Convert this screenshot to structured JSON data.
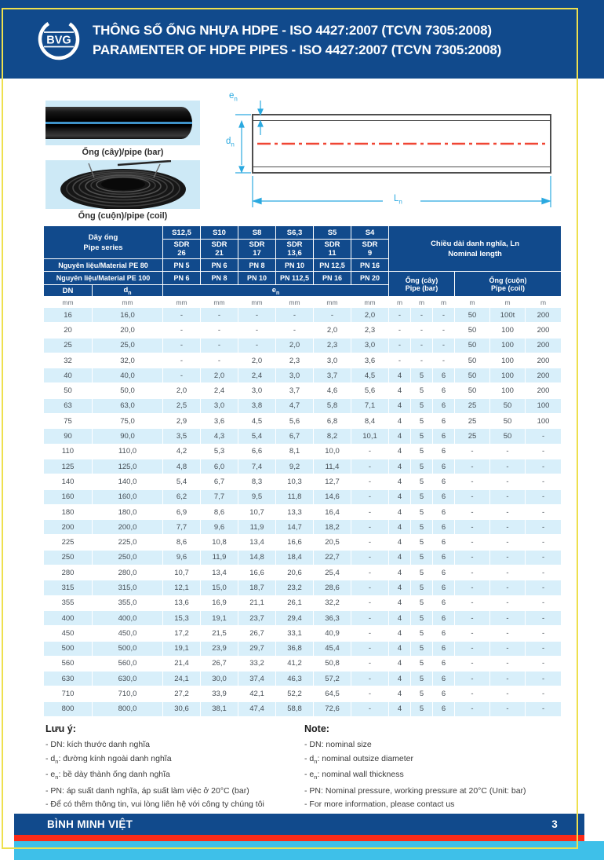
{
  "header": {
    "logo_text": "BVG",
    "title_line1": "THÔNG SỐ ỐNG NHỰA HDPE - ISO 4427:2007 (TCVN 7305:2008)",
    "title_line2": "PARAMENTER OF HDPE PIPES - ISO 4427:2007 (TCVN 7305:2008)"
  },
  "media": {
    "bar_photo_label": "Ống (cây)/pipe (bar)",
    "coil_photo_label": "Ống (cuộn)/pipe (coil)"
  },
  "diagram": {
    "en": {
      "pre": "e",
      "sub": "n"
    },
    "dn": {
      "pre": "d",
      "sub": "n"
    },
    "ln": {
      "pre": "L",
      "sub": "n"
    }
  },
  "table": {
    "series": {
      "vi": "Dãy ống",
      "en": "Pipe series"
    },
    "s_labels": [
      "S12,5",
      "S10",
      "S8",
      "S6,3",
      "S5",
      "S4"
    ],
    "sdr_label": "SDR",
    "sdr_values": [
      "26",
      "21",
      "17",
      "13,6",
      "11",
      "9"
    ],
    "pe80_label": "Nguyên liệu/Material PE 80",
    "pe80_pn": [
      "PN 5",
      "PN 6",
      "PN 8",
      "PN 10",
      "PN 12,5",
      "PN 16"
    ],
    "pe100_label": "Nguyên liệu/Material PE 100",
    "pe100_pn": [
      "PN 6",
      "PN 8",
      "PN 10",
      "PN 112,5",
      "PN 16",
      "PN 20"
    ],
    "length": {
      "line1": "Chiều dài danh nghĩa, Ln",
      "line2": "Nominal length"
    },
    "bar": {
      "line1": "Ống (cây)",
      "line2": "Pipe (bar)"
    },
    "coil": {
      "line1": "Ống (cuộn)",
      "line2": "Pipe (coil)"
    },
    "col_dn": "DN",
    "col_d": {
      "pre": "d",
      "sub": "n"
    },
    "col_e": {
      "pre": "e",
      "sub": "n"
    },
    "units": [
      "mm",
      "mm",
      "mm",
      "mm",
      "mm",
      "mm",
      "mm",
      "mm",
      "m",
      "m",
      "m",
      "m",
      "m",
      "m"
    ],
    "rows": [
      [
        "16",
        "16,0",
        "-",
        "-",
        "-",
        "-",
        "-",
        "2,0",
        "-",
        "-",
        "-",
        "50",
        "100t",
        "200"
      ],
      [
        "20",
        "20,0",
        "-",
        "-",
        "-",
        "-",
        "2,0",
        "2,3",
        "-",
        "-",
        "-",
        "50",
        "100",
        "200"
      ],
      [
        "25",
        "25,0",
        "-",
        "-",
        "-",
        "2,0",
        "2,3",
        "3,0",
        "-",
        "-",
        "-",
        "50",
        "100",
        "200"
      ],
      [
        "32",
        "32,0",
        "-",
        "-",
        "2,0",
        "2,3",
        "3,0",
        "3,6",
        "-",
        "-",
        "-",
        "50",
        "100",
        "200"
      ],
      [
        "40",
        "40,0",
        "-",
        "2,0",
        "2,4",
        "3,0",
        "3,7",
        "4,5",
        "4",
        "5",
        "6",
        "50",
        "100",
        "200"
      ],
      [
        "50",
        "50,0",
        "2,0",
        "2,4",
        "3,0",
        "3,7",
        "4,6",
        "5,6",
        "4",
        "5",
        "6",
        "50",
        "100",
        "200"
      ],
      [
        "63",
        "63,0",
        "2,5",
        "3,0",
        "3,8",
        "4,7",
        "5,8",
        "7,1",
        "4",
        "5",
        "6",
        "25",
        "50",
        "100"
      ],
      [
        "75",
        "75,0",
        "2,9",
        "3,6",
        "4,5",
        "5,6",
        "6,8",
        "8,4",
        "4",
        "5",
        "6",
        "25",
        "50",
        "100"
      ],
      [
        "90",
        "90,0",
        "3,5",
        "4,3",
        "5,4",
        "6,7",
        "8,2",
        "10,1",
        "4",
        "5",
        "6",
        "25",
        "50",
        "-"
      ],
      [
        "110",
        "110,0",
        "4,2",
        "5,3",
        "6,6",
        "8,1",
        "10,0",
        "-",
        "4",
        "5",
        "6",
        "-",
        "-",
        "-"
      ],
      [
        "125",
        "125,0",
        "4,8",
        "6,0",
        "7,4",
        "9,2",
        "11,4",
        "-",
        "4",
        "5",
        "6",
        "-",
        "-",
        "-"
      ],
      [
        "140",
        "140,0",
        "5,4",
        "6,7",
        "8,3",
        "10,3",
        "12,7",
        "-",
        "4",
        "5",
        "6",
        "-",
        "-",
        "-"
      ],
      [
        "160",
        "160,0",
        "6,2",
        "7,7",
        "9,5",
        "11,8",
        "14,6",
        "-",
        "4",
        "5",
        "6",
        "-",
        "-",
        "-"
      ],
      [
        "180",
        "180,0",
        "6,9",
        "8,6",
        "10,7",
        "13,3",
        "16,4",
        "-",
        "4",
        "5",
        "6",
        "-",
        "-",
        "-"
      ],
      [
        "200",
        "200,0",
        "7,7",
        "9,6",
        "11,9",
        "14,7",
        "18,2",
        "-",
        "4",
        "5",
        "6",
        "-",
        "-",
        "-"
      ],
      [
        "225",
        "225,0",
        "8,6",
        "10,8",
        "13,4",
        "16,6",
        "20,5",
        "-",
        "4",
        "5",
        "6",
        "-",
        "-",
        "-"
      ],
      [
        "250",
        "250,0",
        "9,6",
        "11,9",
        "14,8",
        "18,4",
        "22,7",
        "-",
        "4",
        "5",
        "6",
        "-",
        "-",
        "-"
      ],
      [
        "280",
        "280,0",
        "10,7",
        "13,4",
        "16,6",
        "20,6",
        "25,4",
        "-",
        "4",
        "5",
        "6",
        "-",
        "-",
        "-"
      ],
      [
        "315",
        "315,0",
        "12,1",
        "15,0",
        "18,7",
        "23,2",
        "28,6",
        "-",
        "4",
        "5",
        "6",
        "-",
        "-",
        "-"
      ],
      [
        "355",
        "355,0",
        "13,6",
        "16,9",
        "21,1",
        "26,1",
        "32,2",
        "-",
        "4",
        "5",
        "6",
        "-",
        "-",
        "-"
      ],
      [
        "400",
        "400,0",
        "15,3",
        "19,1",
        "23,7",
        "29,4",
        "36,3",
        "-",
        "4",
        "5",
        "6",
        "-",
        "-",
        "-"
      ],
      [
        "450",
        "450,0",
        "17,2",
        "21,5",
        "26,7",
        "33,1",
        "40,9",
        "-",
        "4",
        "5",
        "6",
        "-",
        "-",
        "-"
      ],
      [
        "500",
        "500,0",
        "19,1",
        "23,9",
        "29,7",
        "36,8",
        "45,4",
        "-",
        "4",
        "5",
        "6",
        "-",
        "-",
        "-"
      ],
      [
        "560",
        "560,0",
        "21,4",
        "26,7",
        "33,2",
        "41,2",
        "50,8",
        "-",
        "4",
        "5",
        "6",
        "-",
        "-",
        "-"
      ],
      [
        "630",
        "630,0",
        "24,1",
        "30,0",
        "37,4",
        "46,3",
        "57,2",
        "-",
        "4",
        "5",
        "6",
        "-",
        "-",
        "-"
      ],
      [
        "710",
        "710,0",
        "27,2",
        "33,9",
        "42,1",
        "52,2",
        "64,5",
        "-",
        "4",
        "5",
        "6",
        "-",
        "-",
        "-"
      ],
      [
        "800",
        "800,0",
        "30,6",
        "38,1",
        "47,4",
        "58,8",
        "72,6",
        "-",
        "4",
        "5",
        "6",
        "-",
        "-",
        "-"
      ]
    ]
  },
  "notes": {
    "vi": {
      "title": "Lưu ý:",
      "items": [
        {
          "pre": "- DN: kích thước danh nghĩa"
        },
        {
          "pre": "- d",
          "sub": "n",
          "post": ": đường kính ngoài danh nghĩa"
        },
        {
          "pre": "- e",
          "sub": "n",
          "post": ": bề dày thành ống danh nghĩa"
        },
        {
          "pre": "- PN: áp suất danh nghĩa, áp suất làm việc ở 20°C (bar)"
        },
        {
          "pre": "- Để có thêm thông tin, vui lòng liên hệ với công ty chúng tôi"
        }
      ]
    },
    "en": {
      "title": "Note:",
      "items": [
        {
          "pre": "- DN: nominal size"
        },
        {
          "pre": "- d",
          "sub": "n",
          "post": ": nominal outsize diameter"
        },
        {
          "pre": "- e",
          "sub": "n",
          "post": ": nominal wall thickness"
        },
        {
          "pre": "- PN: Nominal pressure, working pressure at 20°C (Unit: bar)"
        },
        {
          "pre": "- For more information, please contact us"
        }
      ]
    }
  },
  "footer": {
    "brand": "BÌNH MINH VIỆT",
    "page_number": "3"
  },
  "colors": {
    "header_blue": "#114a8c",
    "border_yellow": "#eee04e",
    "zebra_blue": "#d8effa",
    "photo_bg": "#cde9f6",
    "dim_cyan": "#2aa9e0",
    "centerline_red": "#f04634",
    "footer_red": "#fb2b18",
    "footer_cyan": "#3ec0e9"
  }
}
